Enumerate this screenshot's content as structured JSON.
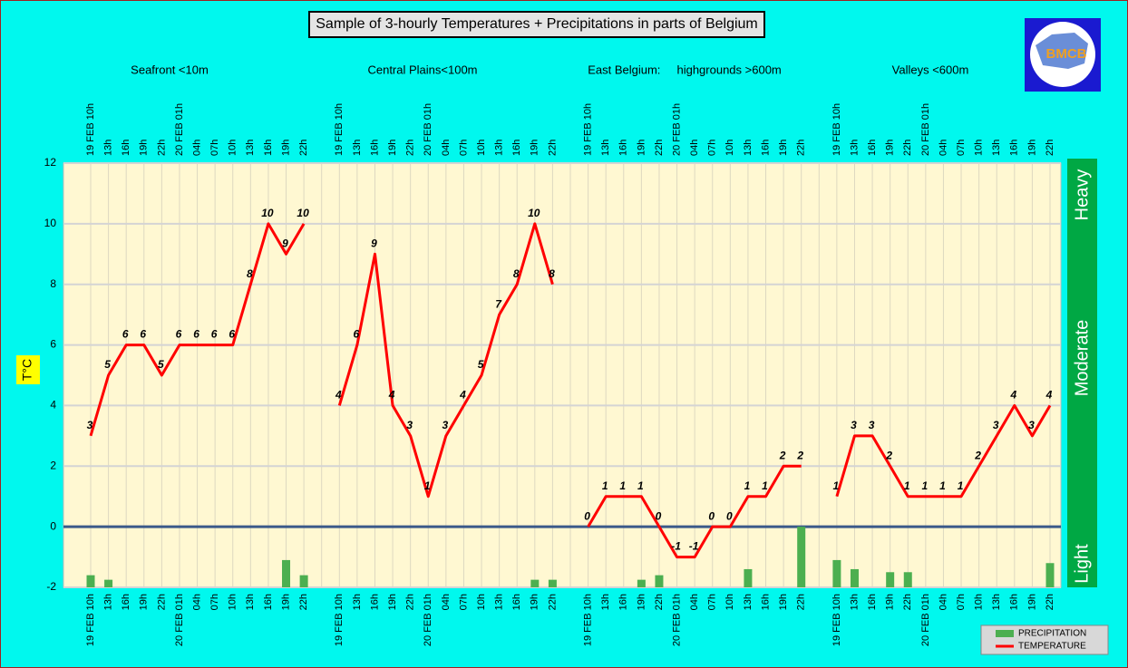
{
  "chart_data": {
    "type": "line",
    "title": "Sample of 3-hourly Temperatures + Precipitations in parts of Belgium",
    "logo": "BMCB",
    "y_label": "T°C",
    "group_labels": [
      "Seafront <10m",
      "Central Plains<100m",
      "East Belgium:     highgrounds >600m",
      "Valleys <600m"
    ],
    "intensity_labels": [
      "Heavy",
      "Moderate",
      "Light"
    ],
    "categories": [
      "19 FEB 10h",
      "13h",
      "16h",
      "19h",
      "22h",
      "20 FEB 01h",
      "04h",
      "07h",
      "10h",
      "13h",
      "16h",
      "19h",
      "22h",
      null,
      "19 FEB 10h",
      "13h",
      "16h",
      "19h",
      "22h",
      "20 FEB 01h",
      "04h",
      "07h",
      "10h",
      "13h",
      "16h",
      "19h",
      "22h",
      null,
      "19 FEB 10h",
      "13h",
      "16h",
      "19h",
      "22h",
      "20 FEB 01h",
      "04h",
      "07h",
      "10h",
      "13h",
      "16h",
      "19h",
      "22h",
      null,
      "19 FEB 10h",
      "13h",
      "16h",
      "19h",
      "22h",
      "20 FEB 01h",
      "04h",
      "07h",
      "10h",
      "13h",
      "16h",
      "19h",
      "22h"
    ],
    "series": [
      {
        "name": "TEMPERATURE",
        "color": "#ff0000",
        "values": [
          3,
          5,
          6,
          6,
          5,
          6,
          6,
          6,
          6,
          8,
          10,
          9,
          10,
          null,
          4,
          6,
          9,
          4,
          3,
          1,
          3,
          4,
          5,
          7,
          8,
          10,
          8,
          null,
          0,
          1,
          1,
          1,
          0,
          -1,
          -1,
          0,
          0,
          1,
          1,
          2,
          2,
          null,
          1,
          3,
          3,
          2,
          1,
          1,
          1,
          1,
          2,
          3,
          4,
          3,
          4
        ]
      },
      {
        "name": "PRECIPITATION",
        "color": "#4caf50",
        "type": "bar",
        "axis": "y2",
        "values": [
          0.4,
          0.25,
          null,
          null,
          null,
          null,
          null,
          null,
          null,
          null,
          null,
          0.9,
          0.4,
          null,
          null,
          null,
          null,
          null,
          null,
          null,
          null,
          null,
          null,
          null,
          null,
          0.25,
          0.25,
          null,
          null,
          null,
          null,
          0.25,
          0.4,
          null,
          null,
          null,
          null,
          0.6,
          null,
          null,
          2.0,
          null,
          0.9,
          0.6,
          null,
          0.5,
          0.5,
          null,
          null,
          null,
          null,
          null,
          null,
          null,
          0.8
        ]
      }
    ],
    "ylim": [
      -2,
      12
    ],
    "yticks": [
      -2,
      0,
      2,
      4,
      6,
      8,
      10,
      12
    ],
    "y2lim": [
      0,
      14
    ],
    "grid": true,
    "legend": "bottom-right"
  }
}
